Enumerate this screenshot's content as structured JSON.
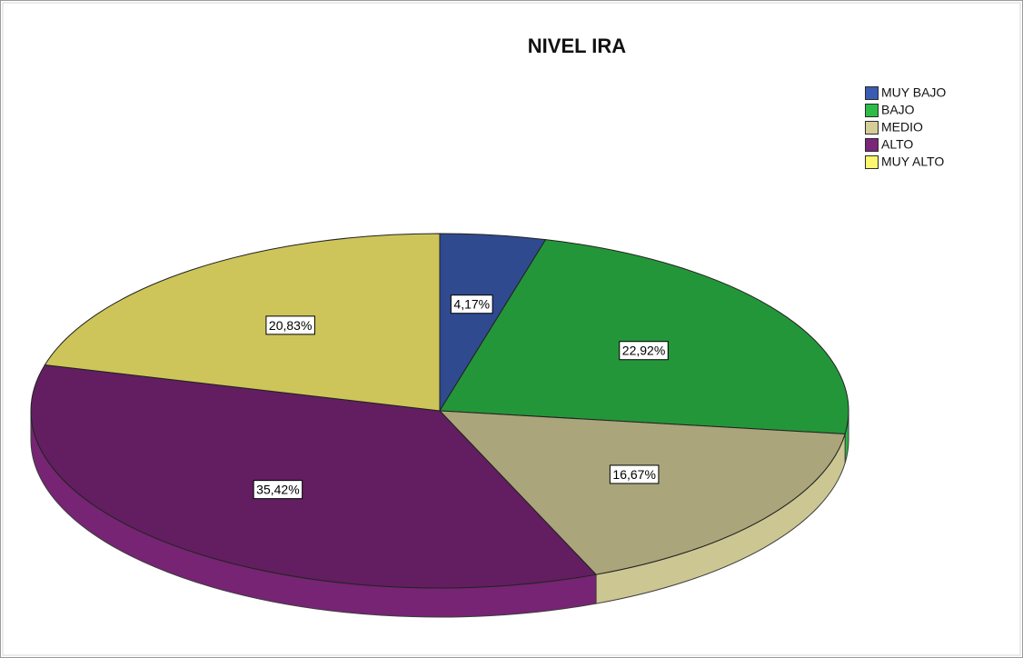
{
  "chart_data": {
    "type": "pie",
    "title": "NIVEL IRA",
    "categories": [
      "MUY BAJO",
      "BAJO",
      "MEDIO",
      "ALTO",
      "MUY ALTO"
    ],
    "values": [
      4.17,
      22.92,
      16.67,
      35.42,
      20.83
    ],
    "value_labels": [
      "4,17%",
      "22,92%",
      "16,67%",
      "35,42%",
      "20,83%"
    ],
    "colors": [
      "#2f4a8f",
      "#24963a",
      "#aaa57a",
      "#621e60",
      "#cdc55a"
    ],
    "legend": "top-right"
  }
}
